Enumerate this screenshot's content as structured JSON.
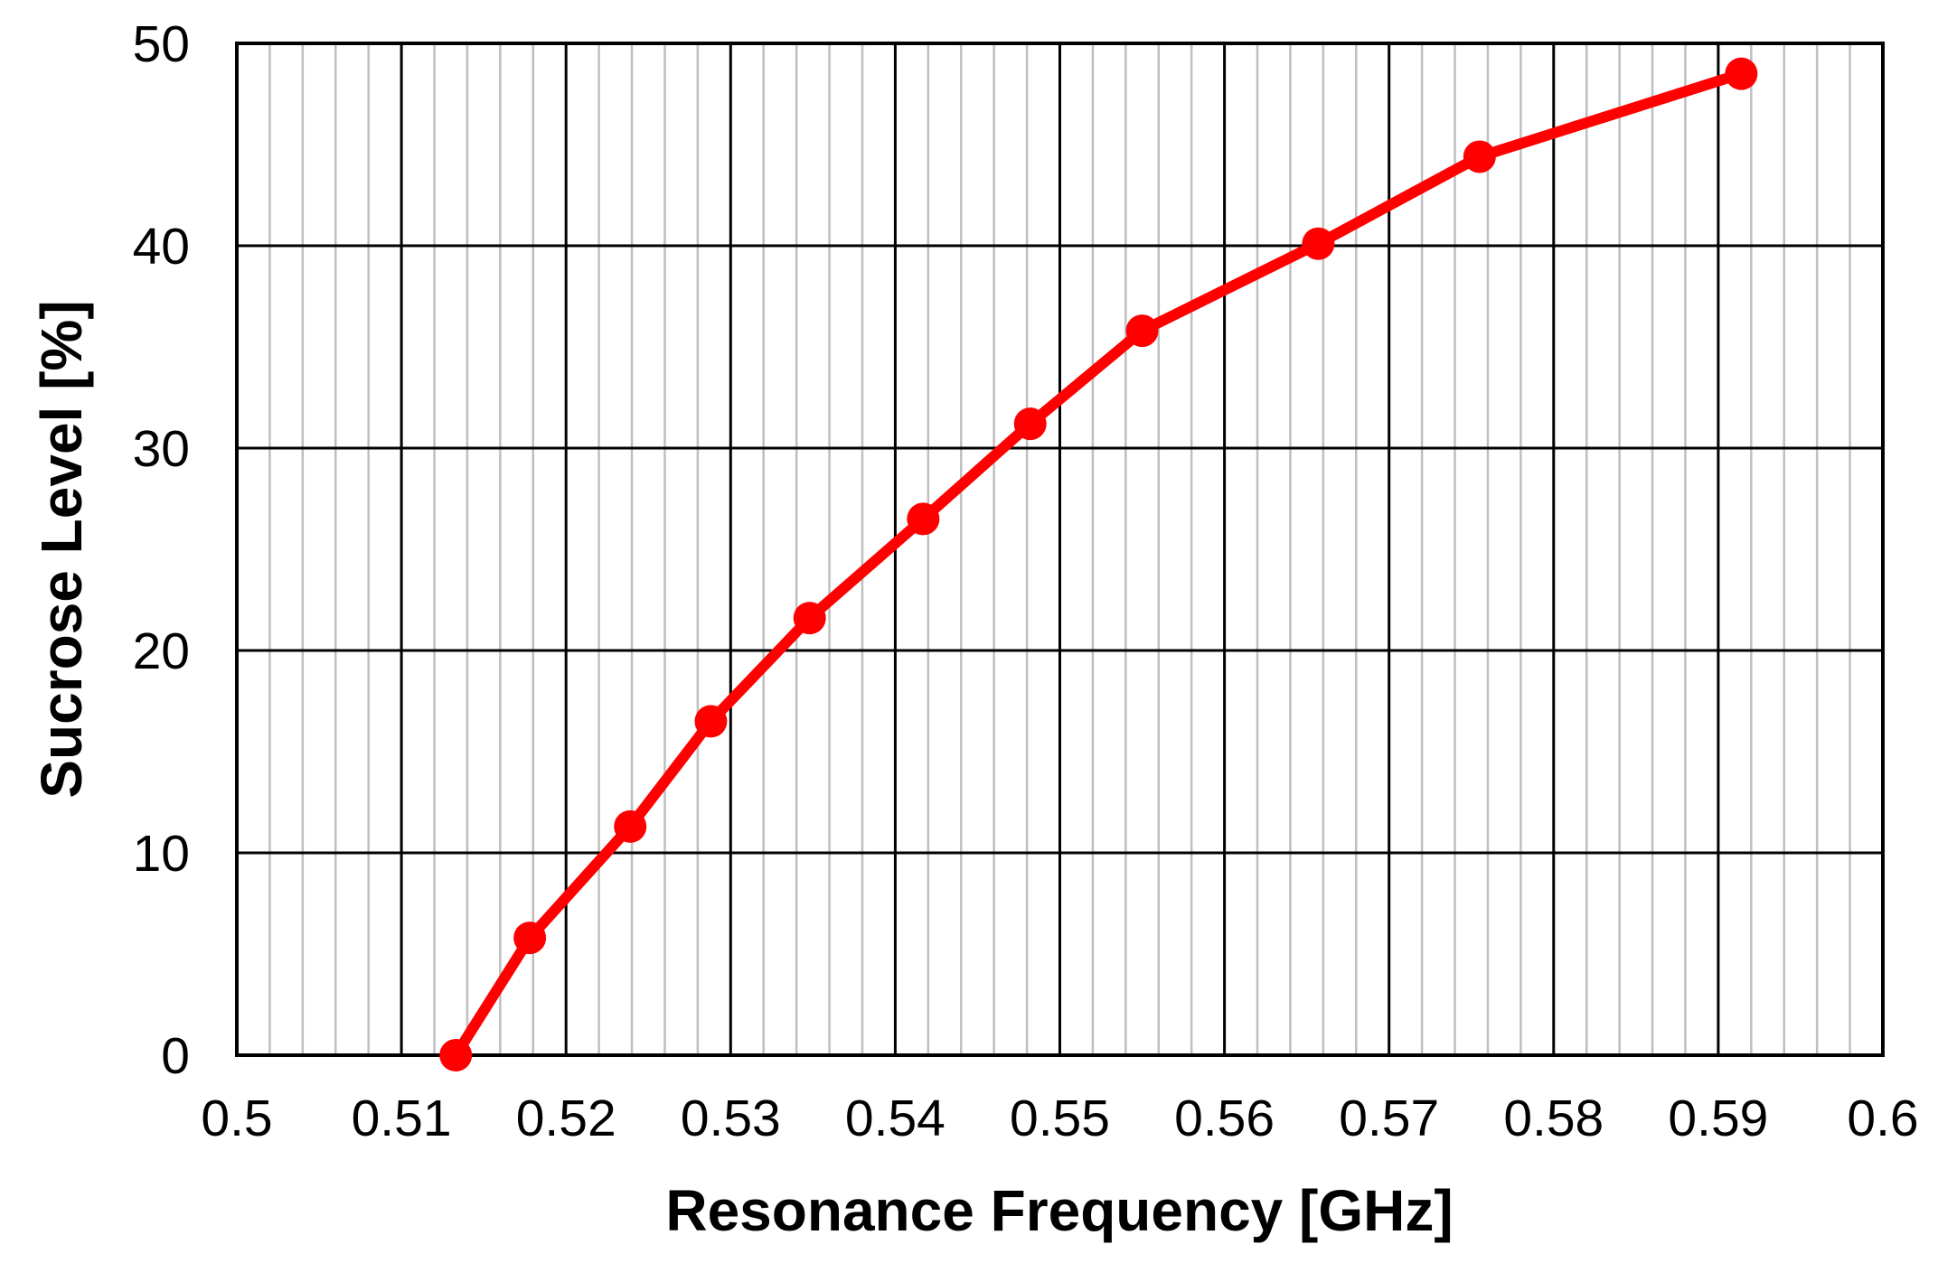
{
  "chart_data": {
    "type": "line",
    "title": "",
    "xlabel": "Resonance Frequency [GHz]",
    "ylabel": "Sucrose Level [%]",
    "xlim": [
      0.5,
      0.6
    ],
    "ylim": [
      0,
      50
    ],
    "x_ticks": [
      "0.5",
      "0.51",
      "0.52",
      "0.53",
      "0.54",
      "0.55",
      "0.56",
      "0.57",
      "0.58",
      "0.59",
      "0.6"
    ],
    "y_ticks": [
      "0",
      "10",
      "20",
      "30",
      "40",
      "50"
    ],
    "x_minor_step": 0.002,
    "grid": true,
    "legend": null,
    "series": [
      {
        "name": "Sucrose Level",
        "color": "#FF0000",
        "marker": "circle",
        "x": [
          0.5133,
          0.5178,
          0.5239,
          0.5288,
          0.5348,
          0.5417,
          0.5482,
          0.555,
          0.5657,
          0.5755,
          0.5914
        ],
        "y": [
          0.0,
          5.8,
          11.3,
          16.5,
          21.6,
          26.5,
          31.2,
          35.8,
          40.1,
          44.4,
          48.5
        ]
      }
    ]
  },
  "colors": {
    "series": "#FF0000",
    "major_grid": "#000000",
    "minor_grid": "#BFBFBF"
  }
}
